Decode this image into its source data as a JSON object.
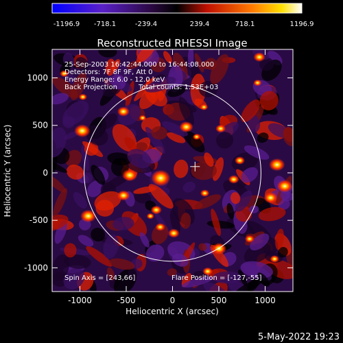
{
  "colorbar": {
    "ticks": [
      "-1196.9",
      "-718.1",
      "-239.4",
      "239.4",
      "718.1",
      "1196.9"
    ],
    "colors": [
      "#0000ff",
      "#6a1fb0",
      "#000000",
      "#ff2000",
      "#ffc000",
      "#ffffff"
    ]
  },
  "title": "Reconstructed RHESSI Image",
  "info": {
    "time_range": "25-Sep-2003 16:42:44.000 to 16:44:08.000",
    "detectors": "Detectors: 7F 8F 9F, Att 0",
    "energy_range": "Energy Range: 6.0 - 12.0 keV",
    "method": "Back Projection",
    "total_counts": "Total counts: 1.53E+03",
    "spin_axis": "Spin Axis = [243,66]",
    "flare_position": "Flare Position = [-127,-55]"
  },
  "axes": {
    "xlabel": "Heliocentric X (arcsec)",
    "ylabel": "Heliocentric Y (arcsec)",
    "xticks": [
      "-1000",
      "-500",
      "0",
      "500",
      "1000"
    ],
    "yticks": [
      "1000",
      "500",
      "0",
      "-500",
      "-1000"
    ],
    "xlim": [
      -1300,
      1300
    ],
    "ylim": [
      -1250,
      1300
    ]
  },
  "solar_limb_radius_arcsec": 955,
  "footer_date": "5-May-2022 19:23"
}
